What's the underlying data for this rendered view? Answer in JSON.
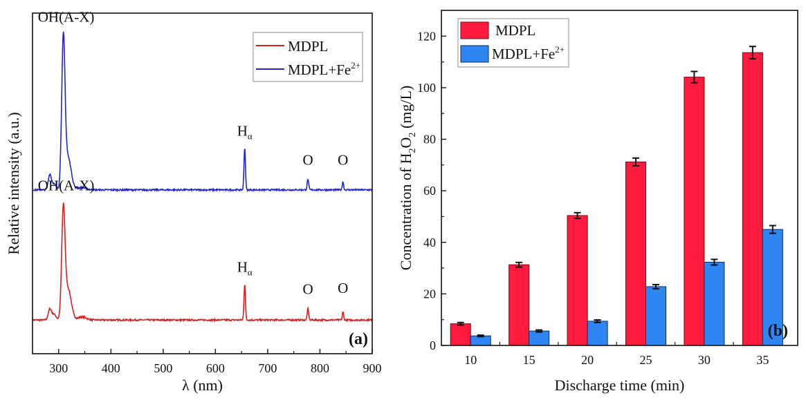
{
  "chart_data": [
    {
      "id": "a",
      "type": "line",
      "panel_label": "(a)",
      "title": "",
      "xlabel": "λ (nm)",
      "ylabel": "Relative intensity (a.u.)",
      "xlim": [
        250,
        900
      ],
      "ylim": [
        0,
        100
      ],
      "xticks": [
        300,
        400,
        500,
        600,
        700,
        800,
        900
      ],
      "xtick_labels": [
        "300",
        "400",
        "500",
        "600",
        "700",
        "800",
        "900"
      ],
      "minor_xticks": [
        350,
        450,
        550,
        650,
        750,
        850
      ],
      "show_yticks": false,
      "grid": false,
      "legend": {
        "placement": "top-right",
        "entries": [
          "MDPL",
          "MDPL+Fe2+"
        ]
      },
      "series": [
        {
          "name": "MDPL",
          "color": "#d81e1e",
          "baseline": 9.9,
          "peaks": [
            {
              "x": 283,
              "y": 13.0,
              "width": 3
            },
            {
              "x": 291,
              "y": 11.6,
              "width": 4
            },
            {
              "x": 309,
              "y": 41.2,
              "width": 3.2
            },
            {
              "x": 318,
              "y": 19.0,
              "width": 6
            },
            {
              "x": 345,
              "y": 10.8,
              "width": 8
            },
            {
              "x": 656,
              "y": 20.5,
              "width": 1.4
            },
            {
              "x": 777,
              "y": 13.2,
              "width": 1.4
            },
            {
              "x": 844,
              "y": 12.2,
              "width": 1.3
            }
          ],
          "annotations": [
            {
              "text": "OH(A-X)",
              "x": 309,
              "label_y": 48
            },
            {
              "text": "H",
              "sub": "α",
              "x": 656,
              "label_y": 24
            },
            {
              "text": "O",
              "x": 777,
              "label_y": 17.5
            },
            {
              "text": "O",
              "x": 844,
              "label_y": 17.8
            }
          ]
        },
        {
          "name": "MDPL+Fe2+",
          "color": "#2424cc",
          "baseline": 48.1,
          "peaks": [
            {
              "x": 283,
              "y": 52.5,
              "width": 3
            },
            {
              "x": 291,
              "y": 49.8,
              "width": 4
            },
            {
              "x": 309,
              "y": 91.3,
              "width": 3.2
            },
            {
              "x": 318,
              "y": 57.5,
              "width": 6
            },
            {
              "x": 345,
              "y": 48.8,
              "width": 8
            },
            {
              "x": 656,
              "y": 60.6,
              "width": 1.4
            },
            {
              "x": 777,
              "y": 51.3,
              "width": 1.4
            },
            {
              "x": 844,
              "y": 50.5,
              "width": 1.3
            }
          ],
          "annotations": [
            {
              "text": "OH(A-X)",
              "x": 309,
              "label_y": 97.5
            },
            {
              "text": "H",
              "sub": "α",
              "x": 656,
              "label_y": 64
            },
            {
              "text": "O",
              "x": 777,
              "label_y": 55.5
            },
            {
              "text": "O",
              "x": 844,
              "label_y": 55.5
            }
          ]
        }
      ]
    },
    {
      "id": "b",
      "type": "bar",
      "panel_label": "(b)",
      "title": "",
      "xlabel": "Discharge time (min)",
      "ylabel_parts": [
        "Concentration of H",
        "2",
        "O",
        "2",
        " (mg/L)"
      ],
      "ylabel": "Concentration of H2O2 (mg/L)",
      "ylim": [
        0,
        130
      ],
      "yticks": [
        0,
        20,
        40,
        60,
        80,
        100,
        120
      ],
      "minor_yticks": [
        10,
        30,
        50,
        70,
        90,
        110
      ],
      "categories": [
        "10",
        "15",
        "20",
        "25",
        "30",
        "35"
      ],
      "grid": false,
      "legend": {
        "placement": "top-left",
        "entries": [
          "MDPL",
          "MDPL+Fe2+"
        ]
      },
      "series": [
        {
          "name": "MDPL",
          "color": "#ff1b3d",
          "edge": "#6b0a18",
          "values": [
            8.4,
            31.3,
            50.4,
            71.2,
            104.1,
            113.6
          ],
          "errors": [
            0.5,
            0.9,
            1.1,
            1.5,
            2.2,
            2.4
          ]
        },
        {
          "name": "MDPL+Fe2+",
          "color": "#2f86f2",
          "edge": "#0e2a5a",
          "values": [
            3.7,
            5.6,
            9.4,
            22.8,
            32.3,
            45.0
          ],
          "errors": [
            0.3,
            0.4,
            0.5,
            0.8,
            1.1,
            1.5
          ]
        }
      ]
    }
  ],
  "legend_text": {
    "mdpl": "MDPL",
    "fe_base": "MDPL+Fe",
    "fe_sup": "2+"
  }
}
